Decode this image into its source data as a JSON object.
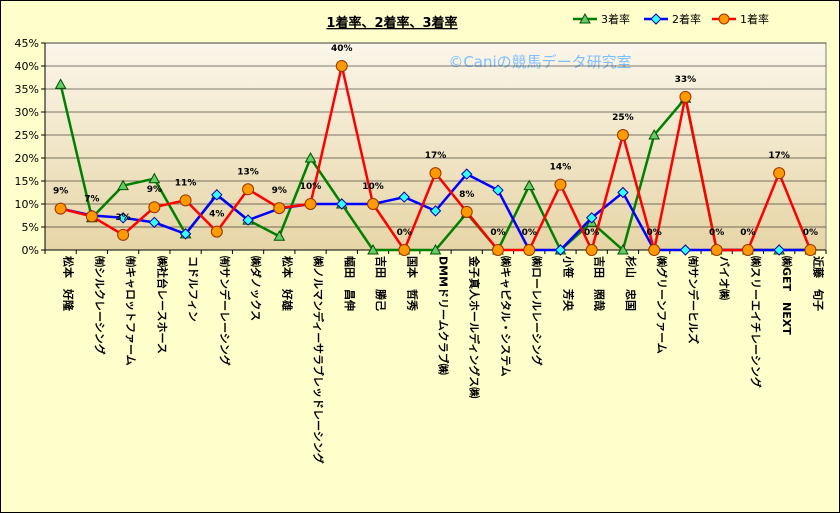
{
  "chart_data": {
    "type": "line",
    "title": "1着率、2着率、3着率",
    "watermark": "©Caniの競馬データ研究室",
    "ylim": [
      0,
      45
    ],
    "yticks": [
      "0%",
      "5%",
      "10%",
      "15%",
      "20%",
      "25%",
      "30%",
      "35%",
      "40%",
      "45%"
    ],
    "grid": "horizontal",
    "legend_position": "top-right",
    "categories": [
      "松本　好隆",
      "㈲シルクレーシング",
      "㈲キャロットファーム",
      "㈱社台レースホース",
      "コドルフィン",
      "㈲サンデーレーシング",
      "㈱ダノックス",
      "松本　好雄",
      "㈱ノルマンディーサラブレッドレーシング",
      "幅田　昌伸",
      "吉田　勝己",
      "国本　哲秀",
      "DMMドリームクラブ㈱",
      "金子真人ホールディングス㈱",
      "㈱キャピタル・システム",
      "㈱ローレルレーシング",
      "小笹　芳央",
      "吉田　照哉",
      "杉山　忠国",
      "㈱グリーンファーム",
      "㈲サンデーヒルズ",
      "バイオ㈱",
      "㈱スリーエイチレーシング",
      "㈱GET　NEXT",
      "近藤　旬子"
    ],
    "series": [
      {
        "name": "3着率",
        "color": "#008000",
        "marker": "triangle",
        "values": [
          36,
          7,
          14,
          15.5,
          3.5,
          12,
          6.5,
          3,
          20,
          10,
          0,
          0,
          0,
          8,
          0,
          14,
          0,
          6,
          0,
          25,
          33,
          0,
          0,
          0,
          0
        ]
      },
      {
        "name": "2着率",
        "color": "#0000ff",
        "marker": "diamond",
        "values": [
          9,
          7.5,
          7,
          6,
          3.5,
          12,
          6.5,
          9,
          10,
          10,
          10,
          11.5,
          8.5,
          16.5,
          13,
          0,
          0,
          7,
          12.5,
          0,
          0,
          0,
          0,
          0,
          0
        ]
      },
      {
        "name": "1着率",
        "color": "#ff0000",
        "marker": "circle",
        "values": [
          9,
          7.3,
          3.3,
          9.3,
          10.8,
          4,
          13.2,
          9.1,
          10,
          40,
          10,
          0,
          16.7,
          8.3,
          0,
          0,
          14.2,
          0,
          25,
          0,
          33.3,
          0,
          0,
          16.7,
          0
        ]
      }
    ],
    "data_labels": [
      {
        "index": 0,
        "text": "9%"
      },
      {
        "index": 1,
        "text": "7%"
      },
      {
        "index": 2,
        "text": "3%"
      },
      {
        "index": 3,
        "text": "9%"
      },
      {
        "index": 4,
        "text": "11%"
      },
      {
        "index": 5,
        "text": "4%"
      },
      {
        "index": 6,
        "text": "13%"
      },
      {
        "index": 7,
        "text": "9%"
      },
      {
        "index": 8,
        "text": "10%"
      },
      {
        "index": 9,
        "text": "40%"
      },
      {
        "index": 10,
        "text": "10%"
      },
      {
        "index": 11,
        "text": "0%"
      },
      {
        "index": 12,
        "text": "17%"
      },
      {
        "index": 13,
        "text": "8%"
      },
      {
        "index": 14,
        "text": "0%"
      },
      {
        "index": 15,
        "text": "0%"
      },
      {
        "index": 16,
        "text": "14%"
      },
      {
        "index": 17,
        "text": "0%"
      },
      {
        "index": 18,
        "text": "25%"
      },
      {
        "index": 19,
        "text": "0%"
      },
      {
        "index": 20,
        "text": "33%"
      },
      {
        "index": 21,
        "text": "0%"
      },
      {
        "index": 22,
        "text": "0%"
      },
      {
        "index": 23,
        "text": "17%"
      },
      {
        "index": 24,
        "text": "0%"
      }
    ]
  }
}
